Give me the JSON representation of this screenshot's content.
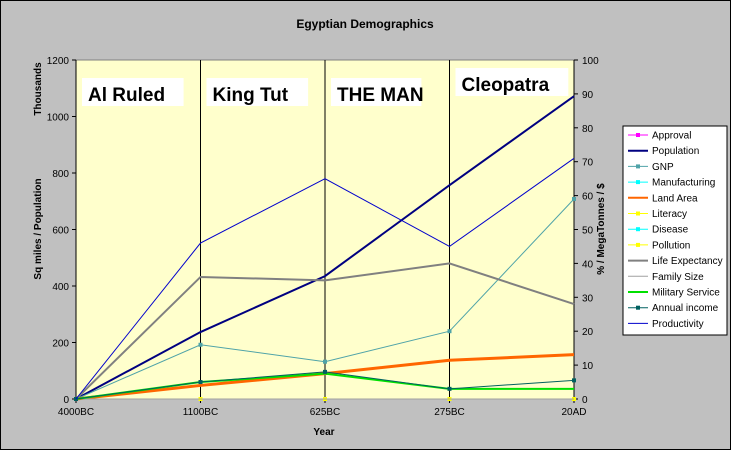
{
  "chart_data": {
    "type": "line",
    "title": "Egyptian Demographics",
    "xlabel": "Year",
    "ylabel_left": "Sq miles / Population",
    "left_axis_unit": "Thousands",
    "ylabel_right": "% / MegaTonnes / $",
    "categories": [
      "4000BC",
      "1100BC",
      "625BC",
      "275BC",
      "20AD"
    ],
    "left_ylim": [
      0,
      1200
    ],
    "left_yticks": [
      0,
      200,
      400,
      600,
      800,
      1000,
      1200
    ],
    "right_ylim": [
      0,
      100
    ],
    "right_yticks": [
      0,
      10,
      20,
      30,
      40,
      50,
      60,
      70,
      80,
      90,
      100
    ],
    "plot_background": "#ffffcc",
    "legend_position": "right",
    "eras": [
      {
        "label": "Al Ruled",
        "from": 0,
        "to": 1
      },
      {
        "label": "King Tut",
        "from": 1,
        "to": 2
      },
      {
        "label": "THE MAN",
        "from": 2,
        "to": 3
      },
      {
        "label": "Cleopatra",
        "from": 3,
        "to": 4
      }
    ],
    "series": [
      {
        "name": "Approval",
        "axis": "right",
        "values": [
          0,
          0,
          0,
          0,
          0
        ],
        "color": "#ff00ff",
        "width": 1,
        "marker": "square"
      },
      {
        "name": "Population",
        "axis": "left",
        "values": [
          0,
          237,
          435,
          757,
          1072
        ],
        "color": "#000080",
        "width": 2,
        "marker": "none"
      },
      {
        "name": "GNP",
        "axis": "right",
        "values": [
          0,
          16,
          11,
          20,
          59
        ],
        "color": "#4fa3a8",
        "width": 1,
        "marker": "triangle"
      },
      {
        "name": "Manufacturing",
        "axis": "right",
        "values": [
          0,
          0,
          0,
          0,
          0
        ],
        "color": "#00ffff",
        "width": 1,
        "marker": "x"
      },
      {
        "name": "Land Area",
        "axis": "left",
        "values": [
          0,
          48,
          90,
          137,
          157
        ],
        "color": "#ff6600",
        "width": 3,
        "marker": "none"
      },
      {
        "name": "Literacy",
        "axis": "right",
        "values": [
          0,
          0,
          0,
          0,
          0
        ],
        "color": "#ffff00",
        "width": 1,
        "marker": "x"
      },
      {
        "name": "Disease",
        "axis": "right",
        "values": [
          0,
          0,
          0,
          0,
          0
        ],
        "color": "#00ffff",
        "width": 1,
        "marker": "x"
      },
      {
        "name": "Pollution",
        "axis": "right",
        "values": [
          0,
          0,
          0,
          0,
          0
        ],
        "color": "#ffff00",
        "width": 1,
        "marker": "circle"
      },
      {
        "name": "Life Expectancy",
        "axis": "right",
        "values": [
          0,
          36,
          35,
          40,
          28
        ],
        "color": "#808080",
        "width": 2,
        "marker": "none"
      },
      {
        "name": "Family Size",
        "axis": "right",
        "values": [
          0,
          0,
          0,
          0,
          0
        ],
        "color": "#a0a0a0",
        "width": 1,
        "marker": "none"
      },
      {
        "name": "Military Service",
        "axis": "right",
        "values": [
          0,
          5,
          7.5,
          3,
          3
        ],
        "color": "#00e000",
        "width": 2,
        "marker": "none"
      },
      {
        "name": "Annual income",
        "axis": "right",
        "values": [
          0,
          5,
          8,
          3,
          5.5
        ],
        "color": "#006060",
        "width": 1,
        "marker": "cross"
      },
      {
        "name": "Productivity",
        "axis": "right",
        "values": [
          0,
          46,
          65,
          45,
          71
        ],
        "color": "#0000cc",
        "width": 1,
        "marker": "none"
      }
    ]
  }
}
